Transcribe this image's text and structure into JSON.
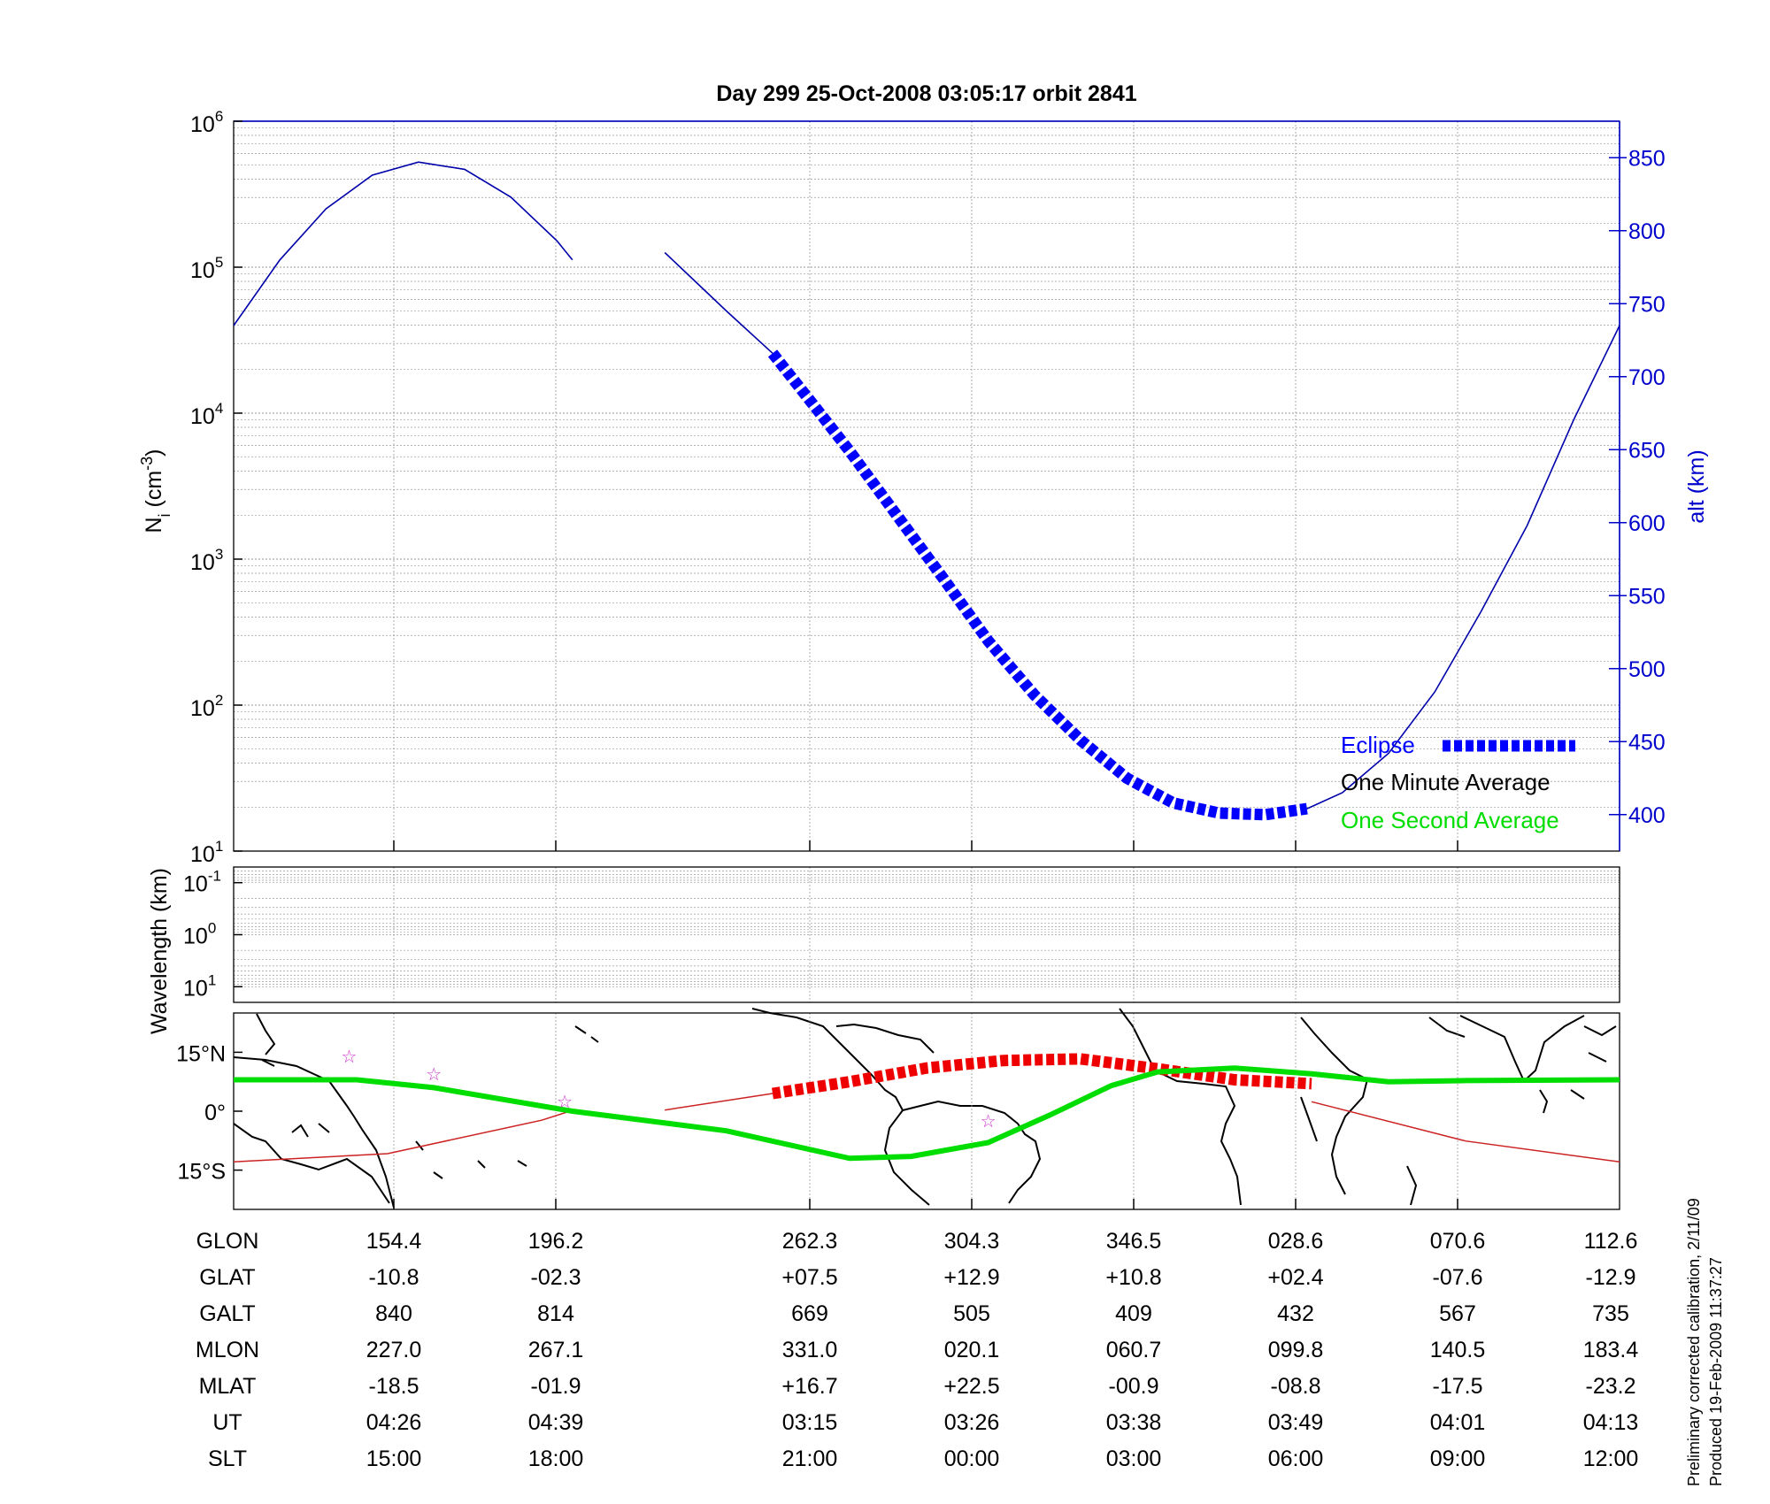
{
  "chart_data": [
    {
      "panel": "ion-density-altitude",
      "type": "line",
      "title": "Day 299  25-Oct-2008 03:05:17   orbit 2841",
      "ylabel": "N",
      "ylabel_sub": "i",
      "ylabel_unit": "(cm",
      "ylabel_unit_exp": "-3",
      "ylabel_close": ")",
      "y_scale": "log",
      "ylim": [
        10,
        1000000
      ],
      "y_ticks": [
        {
          "base": "10",
          "exp": "1"
        },
        {
          "base": "10",
          "exp": "2"
        },
        {
          "base": "10",
          "exp": "3"
        },
        {
          "base": "10",
          "exp": "4"
        },
        {
          "base": "10",
          "exp": "5"
        },
        {
          "base": "10",
          "exp": "6"
        }
      ],
      "y2label": "alt (km)",
      "y2lim": [
        375,
        875
      ],
      "y2_ticks": [
        "400",
        "450",
        "500",
        "550",
        "600",
        "650",
        "700",
        "750",
        "800",
        "850"
      ],
      "x_ticks_ut": [
        "04:26",
        "04:39",
        "03:15",
        "03:26",
        "03:38",
        "03:49",
        "04:01",
        "04:13"
      ],
      "grid": true,
      "colors": {
        "altitude": "#0000aa",
        "eclipse": "#0000ff",
        "one_minute": "#000000",
        "one_second": "#00dd00",
        "axis2": "#0000cc"
      },
      "series": [
        {
          "name": "alt (km)",
          "axis": "right",
          "segments": [
            {
              "x": [
                0.0,
                0.3,
                0.6,
                0.9,
                1.2,
                1.5,
                1.8,
                2.1,
                2.2
              ],
              "y": [
                735,
                780,
                815,
                838,
                847,
                842,
                823,
                793,
                780
              ]
            },
            {
              "x": [
                2.8,
                3.0,
                3.2,
                3.5
              ],
              "y": [
                785,
                765,
                745,
                716
              ]
            }
          ]
        },
        {
          "name": "Eclipse",
          "axis": "right",
          "x": [
            3.5,
            3.8,
            4.0,
            4.3,
            4.6,
            4.9,
            5.2,
            5.5,
            5.8,
            6.1,
            6.4,
            6.7,
            6.97
          ],
          "y": [
            716,
            676,
            649,
            606,
            563,
            519,
            482,
            451,
            425,
            408,
            401,
            400,
            404
          ]
        },
        {
          "name": "alt (km)",
          "axis": "right",
          "x": [
            6.97,
            7.2,
            7.5,
            7.8,
            8.1,
            8.4,
            8.7,
            9.0
          ],
          "y": [
            404,
            415,
            442,
            484,
            539,
            598,
            670,
            735
          ]
        }
      ],
      "legend": {
        "placement": "bottom-right",
        "items": [
          {
            "label": "Eclipse",
            "color": "#0000ff",
            "style": "thick-dashed"
          },
          {
            "label": "One Minute Average",
            "color": "#000000",
            "style": "line"
          },
          {
            "label": "One Second Average",
            "color": "#00dd00",
            "style": "line"
          }
        ]
      }
    },
    {
      "panel": "wavelength",
      "type": "line",
      "ylabel": "Wavelength (km)",
      "y_scale": "log",
      "ylim": [
        0.05,
        20
      ],
      "y_ticks": [
        {
          "base": "10",
          "exp": "-1"
        },
        {
          "base": "10",
          "exp": "0"
        },
        {
          "base": "10",
          "exp": "1"
        }
      ],
      "grid": true,
      "series": []
    },
    {
      "panel": "ground-track-map",
      "type": "line",
      "ylim": [
        -25,
        25
      ],
      "y_ticks": [
        "15°N",
        "0°",
        "15°S"
      ],
      "grid": true,
      "series": [
        {
          "name": "ground track",
          "color": "#cc2222",
          "segments": [
            {
              "x": [
                0.0,
                1.0,
                2.0,
                2.2
              ],
              "y": [
                -12.9,
                -10.8,
                -2.3,
                0.2
              ]
            },
            {
              "x": [
                2.8,
                3.5
              ],
              "y": [
                0.3,
                4.5
              ]
            },
            {
              "x": [
                7.0,
                8.0,
                9.0
              ],
              "y": [
                2.4,
                -7.6,
                -12.9
              ]
            }
          ]
        },
        {
          "name": "eclipse track",
          "color": "#ee0000",
          "x": [
            3.5,
            4.0,
            4.5,
            5.0,
            5.5,
            6.0,
            6.5,
            7.0
          ],
          "y": [
            4.5,
            7.5,
            11.0,
            12.9,
            13.3,
            10.8,
            8.0,
            7.0
          ]
        },
        {
          "name": "magnetic equator",
          "color": "#00dd00",
          "x": [
            0.0,
            0.8,
            1.3,
            2.2,
            3.2,
            4.0,
            4.4,
            4.9,
            5.3,
            5.7,
            6.0,
            6.5,
            7.0,
            7.5,
            8.0,
            9.0
          ],
          "y": [
            8.0,
            8.0,
            6.0,
            0.0,
            -5.0,
            -12.0,
            -11.5,
            -8.0,
            -1.0,
            6.5,
            10.0,
            11.0,
            9.5,
            7.5,
            7.8,
            8.0
          ]
        },
        {
          "name": "stars",
          "color": "#cc33cc",
          "x": [
            0.75,
            1.3,
            2.15,
            4.9
          ],
          "y": [
            14.0,
            9.5,
            2.5,
            -2.5
          ]
        }
      ]
    }
  ],
  "table": {
    "rows": [
      {
        "label": "GLON",
        "values": [
          "154.4",
          "196.2",
          "262.3",
          "304.3",
          "346.5",
          "028.6",
          "070.6",
          "112.6"
        ]
      },
      {
        "label": "GLAT",
        "values": [
          "-10.8",
          "-02.3",
          "+07.5",
          "+12.9",
          "+10.8",
          "+02.4",
          "-07.6",
          "-12.9"
        ]
      },
      {
        "label": "GALT",
        "values": [
          "840",
          "814",
          "669",
          "505",
          "409",
          "432",
          "567",
          "735"
        ]
      },
      {
        "label": "MLON",
        "values": [
          "227.0",
          "267.1",
          "331.0",
          "020.1",
          "060.7",
          "099.8",
          "140.5",
          "183.4"
        ]
      },
      {
        "label": "MLAT",
        "values": [
          "-18.5",
          "-01.9",
          "+16.7",
          "+22.5",
          "-00.9",
          "-08.8",
          "-17.5",
          "-23.2"
        ]
      },
      {
        "label": "UT",
        "values": [
          "04:26",
          "04:39",
          "03:15",
          "03:26",
          "03:38",
          "03:49",
          "04:01",
          "04:13"
        ]
      },
      {
        "label": "SLT",
        "values": [
          "15:00",
          "18:00",
          "21:00",
          "00:00",
          "03:00",
          "06:00",
          "09:00",
          "12:00"
        ]
      }
    ]
  },
  "footer": {
    "line1": "Preliminary corrected calibration, 2/11/09",
    "line2": "Produced 19-Feb-2009 11:37:27"
  }
}
